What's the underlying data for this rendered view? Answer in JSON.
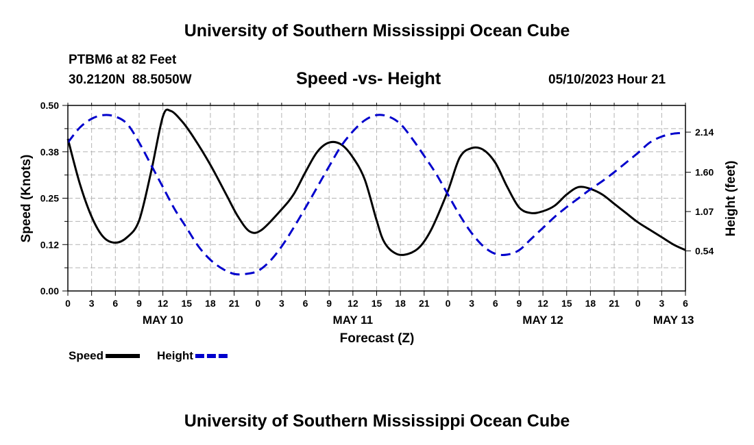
{
  "page": {
    "title": "University of Southern Mississippi Ocean Cube",
    "footer_title": "University of Southern Mississippi Ocean Cube",
    "station": "PTBM6 at 82 Feet",
    "coords": "30.2120N  88.5050W",
    "datetime": "05/10/2023 Hour 21"
  },
  "chart_data": {
    "type": "line",
    "title": "Speed -vs- Height",
    "xlabel": "Forecast (Z)",
    "ylabel": "Speed (Knots)",
    "y2label": "Height (feet)",
    "x_unit": "hours since 2023-05-10 00Z",
    "xlim": [
      0,
      78
    ],
    "ylim": [
      0,
      0.5
    ],
    "y2lim": [
      0,
      2.5
    ],
    "yticks": [
      0,
      0.125,
      0.25,
      0.375,
      0.5
    ],
    "yticklabels": [
      "0.00",
      "0.12",
      "0.25",
      "0.38",
      "0.50"
    ],
    "y2ticks": [
      0.54,
      1.07,
      1.6,
      2.14
    ],
    "y2ticklabels": [
      "0.54",
      "1.07",
      "1.60",
      "2.14"
    ],
    "xticks": [
      0,
      3,
      6,
      9,
      12,
      15,
      18,
      21,
      24,
      27,
      30,
      33,
      36,
      39,
      42,
      45,
      48,
      51,
      54,
      57,
      60,
      63,
      66,
      69,
      72,
      75,
      78
    ],
    "xticklabels": [
      "0",
      "3",
      "6",
      "9",
      "12",
      "15",
      "18",
      "21",
      "0",
      "3",
      "6",
      "9",
      "12",
      "15",
      "18",
      "21",
      "0",
      "3",
      "6",
      "9",
      "12",
      "15",
      "18",
      "21",
      "0",
      "3",
      "6"
    ],
    "date_labels": [
      {
        "x": 12,
        "label": "MAY 10"
      },
      {
        "x": 36,
        "label": "MAY 11"
      },
      {
        "x": 60,
        "label": "MAY 12"
      },
      {
        "x": 76.5,
        "label": "MAY 13"
      }
    ],
    "grid": true,
    "legend_position": "bottom-left",
    "series": [
      {
        "name": "Speed",
        "axis": "left",
        "color": "#000000",
        "dash": "solid",
        "x": [
          0,
          1.5,
          3,
          4.5,
          6,
          7.5,
          9,
          10.5,
          12,
          13,
          14.5,
          16,
          18,
          20,
          21.5,
          23,
          24.5,
          27,
          28.5,
          30,
          31.5,
          33,
          34.5,
          36,
          37.5,
          39,
          40,
          41.5,
          43,
          44.5,
          46,
          48,
          49.5,
          51,
          52.5,
          54,
          55.5,
          57,
          58.5,
          60,
          61.5,
          63,
          64.5,
          66,
          67.5,
          69,
          70.5,
          72,
          73.5,
          75,
          76.5,
          78
        ],
        "y": [
          0.41,
          0.29,
          0.2,
          0.145,
          0.13,
          0.145,
          0.19,
          0.32,
          0.47,
          0.485,
          0.455,
          0.41,
          0.34,
          0.26,
          0.2,
          0.16,
          0.165,
          0.22,
          0.26,
          0.32,
          0.375,
          0.4,
          0.395,
          0.36,
          0.3,
          0.19,
          0.13,
          0.1,
          0.1,
          0.12,
          0.17,
          0.27,
          0.36,
          0.385,
          0.38,
          0.345,
          0.28,
          0.225,
          0.21,
          0.215,
          0.23,
          0.26,
          0.28,
          0.275,
          0.26,
          0.235,
          0.21,
          0.185,
          0.165,
          0.145,
          0.125,
          0.11
        ]
      },
      {
        "name": "Height",
        "axis": "right",
        "color": "#0000cc",
        "dash": "dashed",
        "x": [
          0,
          1.5,
          3,
          4.5,
          6,
          7.5,
          9,
          10.5,
          12,
          13.5,
          15,
          16.5,
          18,
          19.5,
          21,
          22.5,
          24,
          25.5,
          27,
          28.5,
          30,
          31.5,
          33,
          34.5,
          36,
          37.5,
          39,
          40.5,
          42,
          43.5,
          45,
          46.5,
          48,
          49.5,
          51,
          52.5,
          54,
          55.5,
          57,
          58.5,
          60,
          61.5,
          63,
          64.5,
          66,
          67.5,
          69,
          70.5,
          72,
          73.5,
          75,
          76.5,
          78
        ],
        "y": [
          2.0,
          2.2,
          2.32,
          2.37,
          2.35,
          2.25,
          2.0,
          1.7,
          1.4,
          1.1,
          0.85,
          0.6,
          0.42,
          0.3,
          0.23,
          0.23,
          0.27,
          0.4,
          0.6,
          0.85,
          1.12,
          1.4,
          1.68,
          1.95,
          2.15,
          2.3,
          2.37,
          2.35,
          2.25,
          2.05,
          1.82,
          1.58,
          1.3,
          1.02,
          0.78,
          0.6,
          0.5,
          0.49,
          0.55,
          0.7,
          0.85,
          1.0,
          1.13,
          1.25,
          1.37,
          1.48,
          1.6,
          1.73,
          1.86,
          2.0,
          2.08,
          2.12,
          2.13
        ]
      }
    ]
  }
}
